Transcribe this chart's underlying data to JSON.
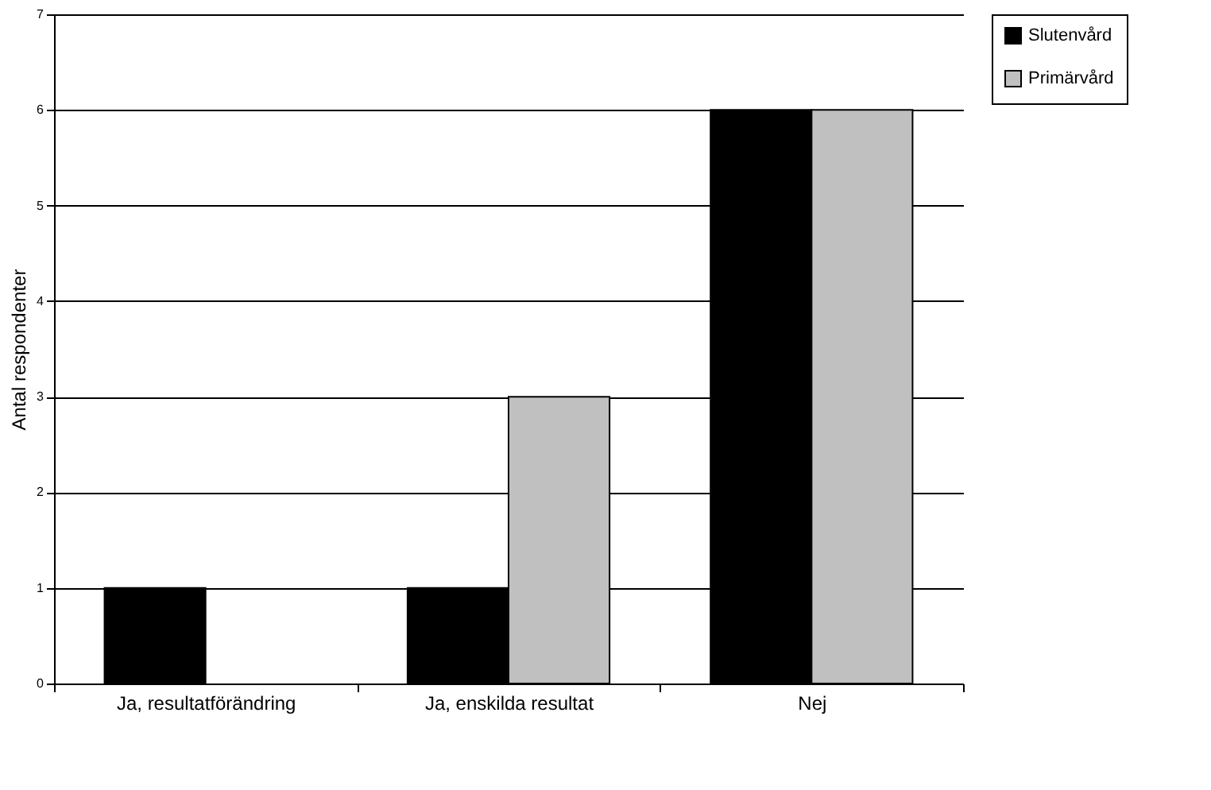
{
  "chart_data": {
    "type": "bar",
    "ylabel": "Antal respondenter",
    "categories": [
      "Ja, resultatförändring",
      "Ja, enskilda resultat",
      "Nej"
    ],
    "series": [
      {
        "name": "Slutenvård",
        "color": "#000000",
        "values": [
          1,
          1,
          6
        ]
      },
      {
        "name": "Primärvård",
        "color": "#c0c0c0",
        "values": [
          0,
          3,
          6
        ]
      }
    ],
    "ylim": [
      0,
      7
    ],
    "yticks": [
      0,
      1,
      2,
      3,
      4,
      5,
      6,
      7
    ],
    "grid": "y",
    "legend": "right"
  }
}
